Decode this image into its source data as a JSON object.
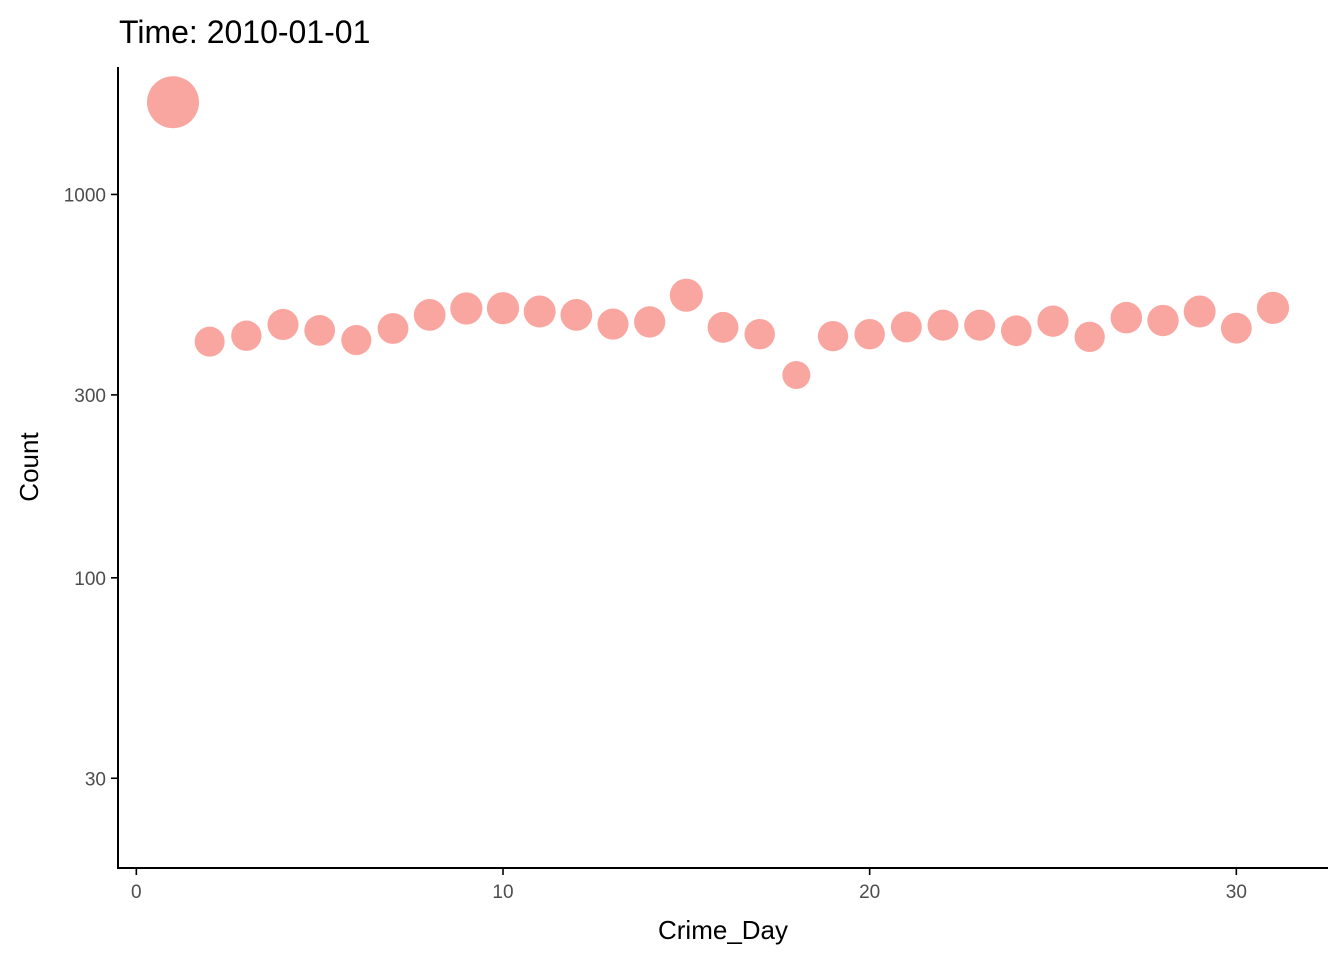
{
  "chart_data": {
    "type": "scatter",
    "title": "Time: 2010-01-01",
    "xlabel": "Crime_Day",
    "ylabel": "Count",
    "y_scale": "log10",
    "xlim": [
      -0.5,
      32.5
    ],
    "ylim": [
      17.5,
      2150
    ],
    "x_ticks": [
      0,
      10,
      20,
      30
    ],
    "x_tick_labels": [
      "0",
      "10",
      "20",
      "30"
    ],
    "y_ticks": [
      30,
      100,
      300,
      1000
    ],
    "y_tick_labels": [
      "30",
      "100",
      "300",
      "1000"
    ],
    "grid": false,
    "legend": "none",
    "point_color": "#F8766D",
    "point_opacity": 0.65,
    "series": [
      {
        "x": [
          1,
          2,
          3,
          4,
          5,
          6,
          7,
          8,
          9,
          10,
          11,
          12,
          13,
          14,
          15,
          16,
          17,
          18,
          19,
          20,
          21,
          22,
          23,
          24,
          25,
          26,
          27,
          28,
          29,
          30,
          31
        ],
        "y": [
          1740,
          413,
          428,
          458,
          442,
          417,
          447,
          485,
          504,
          505,
          495,
          485,
          459,
          465,
          546,
          450,
          432,
          338,
          427,
          432,
          451,
          456,
          456,
          441,
          467,
          425,
          477,
          469,
          495,
          448,
          506
        ]
      }
    ]
  }
}
